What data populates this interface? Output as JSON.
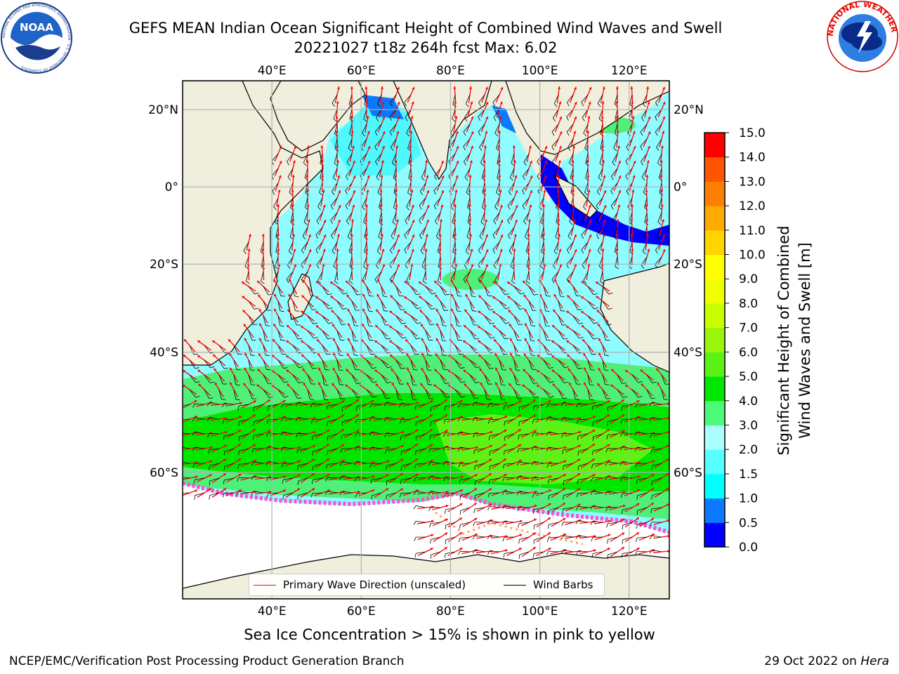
{
  "header": {
    "title_line1": "GEFS MEAN Indian Ocean Significant Height of Combined Wind Waves and Swell",
    "title_line2": "20221027 t18z 264h fcst   Max: 6.02"
  },
  "logos": {
    "left": "NOAA",
    "left_ring_text": "NATIONAL OCEANIC AND ATMOSPHERIC ADMINISTRATION · U.S. DEPARTMENT OF COMMERCE",
    "right_ring_text": "NATIONAL WEATHER SERVICE"
  },
  "map": {
    "lon_ticks": [
      "40°E",
      "60°E",
      "80°E",
      "100°E",
      "120°E"
    ],
    "lat_ticks_left": [
      "20°N",
      "0°",
      "20°S",
      "40°S",
      "60°S"
    ],
    "lat_ticks_right": [
      "20°N",
      "0°",
      "20°S",
      "40°S",
      "60°S"
    ],
    "lon_range": [
      20,
      129
    ],
    "lat_range": [
      -73,
      27
    ]
  },
  "legend": {
    "wave_label": "Primary Wave Direction (unscaled)",
    "barb_label": "Wind Barbs",
    "wave_color": "#ff0000",
    "barb_color": "#000000"
  },
  "colorbar": {
    "title_line1": "Significant Height of Combined",
    "title_line2": "Wind Waves and Swell [m]",
    "ticks": [
      "0.0",
      "0.5",
      "1.0",
      "1.5",
      "2.0",
      "3.0",
      "4.0",
      "5.0",
      "6.0",
      "7.0",
      "8.0",
      "9.0",
      "10.0",
      "11.0",
      "12.0",
      "13.0",
      "14.0",
      "15.0"
    ],
    "colors": [
      "#0000ff",
      "#0a79ff",
      "#00ffff",
      "#55ffff",
      "#aaffff",
      "#4efa79",
      "#00e600",
      "#5df215",
      "#9bf50a",
      "#c8ff00",
      "#f0ff00",
      "#ffff00",
      "#ffd400",
      "#ffaa00",
      "#ff8000",
      "#ff5500",
      "#ff0000"
    ]
  },
  "notes": {
    "sea_ice": "Sea Ice Concentration > 15% is shown in pink to yellow"
  },
  "footer": {
    "left": "NCEP/EMC/Verification Post Processing Product Generation Branch",
    "right_prefix": "29 Oct 2022 on ",
    "right_host": "Hera"
  }
}
